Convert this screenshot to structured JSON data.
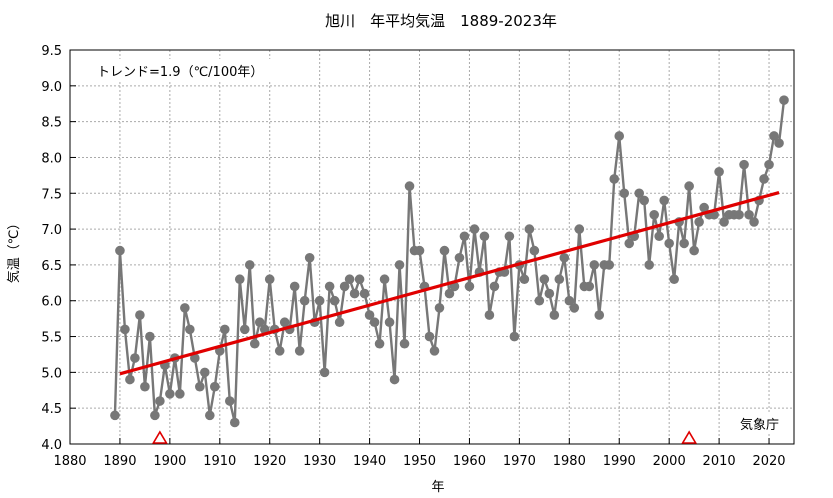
{
  "chart_data": {
    "type": "line",
    "title": "旭川　年平均気温　1889-2023年",
    "xlabel": "年",
    "ylabel": "気温（℃）",
    "xlim": [
      1880,
      2025
    ],
    "ylim": [
      4.0,
      9.5
    ],
    "x_ticks": [
      1880,
      1890,
      1900,
      1910,
      1920,
      1930,
      1940,
      1950,
      1960,
      1970,
      1980,
      1990,
      2000,
      2010,
      2020
    ],
    "y_ticks": [
      4.0,
      4.5,
      5.0,
      5.5,
      6.0,
      6.5,
      7.0,
      7.5,
      8.0,
      8.5,
      9.0,
      9.5
    ],
    "grid": true,
    "trend_label": "トレンド=1.9（℃/100年）",
    "source_label": "気象庁",
    "colors": {
      "series": "#777777",
      "trend": "#e00000",
      "marker": "#e00000"
    },
    "series": [
      {
        "x": [
          1889,
          1890,
          1891,
          1892,
          1893,
          1894,
          1895,
          1896,
          1897,
          1898,
          1899,
          1900,
          1901,
          1902,
          1903,
          1904,
          1905,
          1906,
          1907,
          1908,
          1909,
          1910,
          1911,
          1912,
          1913,
          1914,
          1915,
          1916,
          1917,
          1918,
          1919,
          1920,
          1921,
          1922,
          1923,
          1924,
          1925,
          1926,
          1927,
          1928,
          1929,
          1930,
          1931,
          1932,
          1933,
          1934,
          1935,
          1936,
          1937,
          1938,
          1939,
          1940,
          1941,
          1942,
          1943,
          1944,
          1945,
          1946,
          1947,
          1948,
          1949,
          1950,
          1951,
          1952,
          1953,
          1954,
          1955,
          1956,
          1957,
          1958,
          1959,
          1960,
          1961,
          1962,
          1963,
          1964,
          1965,
          1966,
          1967,
          1968,
          1969,
          1970,
          1971,
          1972,
          1973,
          1974,
          1975,
          1976,
          1977,
          1978,
          1979,
          1980,
          1981,
          1982,
          1983,
          1984,
          1985,
          1986,
          1987,
          1988,
          1989,
          1990,
          1991,
          1992,
          1993,
          1994,
          1995,
          1996,
          1997,
          1998,
          1999,
          2000,
          2001,
          2002,
          2003,
          2004,
          2005,
          2006,
          2007,
          2008,
          2009,
          2010,
          2011,
          2012,
          2013,
          2014,
          2015,
          2016,
          2017,
          2018,
          2019,
          2020,
          2021,
          2022,
          2023
        ],
        "values": [
          4.4,
          6.7,
          5.6,
          4.9,
          5.2,
          5.8,
          4.8,
          5.5,
          4.4,
          4.6,
          5.1,
          4.7,
          5.2,
          4.7,
          5.9,
          5.6,
          5.2,
          4.8,
          5.0,
          4.4,
          4.8,
          5.3,
          5.6,
          4.6,
          4.3,
          6.3,
          5.6,
          6.5,
          5.4,
          5.7,
          5.6,
          6.3,
          5.6,
          5.3,
          5.7,
          5.6,
          6.2,
          5.3,
          6.0,
          6.6,
          5.7,
          6.0,
          5.0,
          6.2,
          6.0,
          5.7,
          6.2,
          6.3,
          6.1,
          6.3,
          6.1,
          5.8,
          5.7,
          5.4,
          6.3,
          5.7,
          4.9,
          6.5,
          5.4,
          7.6,
          6.7,
          6.7,
          6.2,
          5.5,
          5.3,
          5.9,
          6.7,
          6.1,
          6.2,
          6.6,
          6.9,
          6.2,
          7.0,
          6.4,
          6.9,
          5.8,
          6.2,
          6.4,
          6.4,
          6.9,
          5.5,
          6.5,
          6.3,
          7.0,
          6.7,
          6.0,
          6.3,
          6.1,
          5.8,
          6.3,
          6.6,
          6.0,
          5.9,
          7.0,
          6.2,
          6.2,
          6.5,
          5.8,
          6.5,
          6.5,
          7.7,
          8.3,
          7.5,
          6.8,
          6.9,
          7.5,
          7.4,
          6.5,
          7.2,
          6.9,
          7.4,
          6.8,
          6.3,
          7.1,
          6.8,
          7.6,
          6.7,
          7.1,
          7.3,
          7.2,
          7.2,
          7.8,
          7.1,
          7.2,
          7.2,
          7.2,
          7.9,
          7.2,
          7.1,
          7.4,
          7.7,
          7.9,
          8.3,
          8.2,
          8.8
        ]
      }
    ],
    "trend_line": {
      "x": [
        1890,
        2022
      ],
      "y": [
        4.98,
        7.51
      ]
    },
    "station_change_markers": [
      1898,
      2004
    ]
  }
}
